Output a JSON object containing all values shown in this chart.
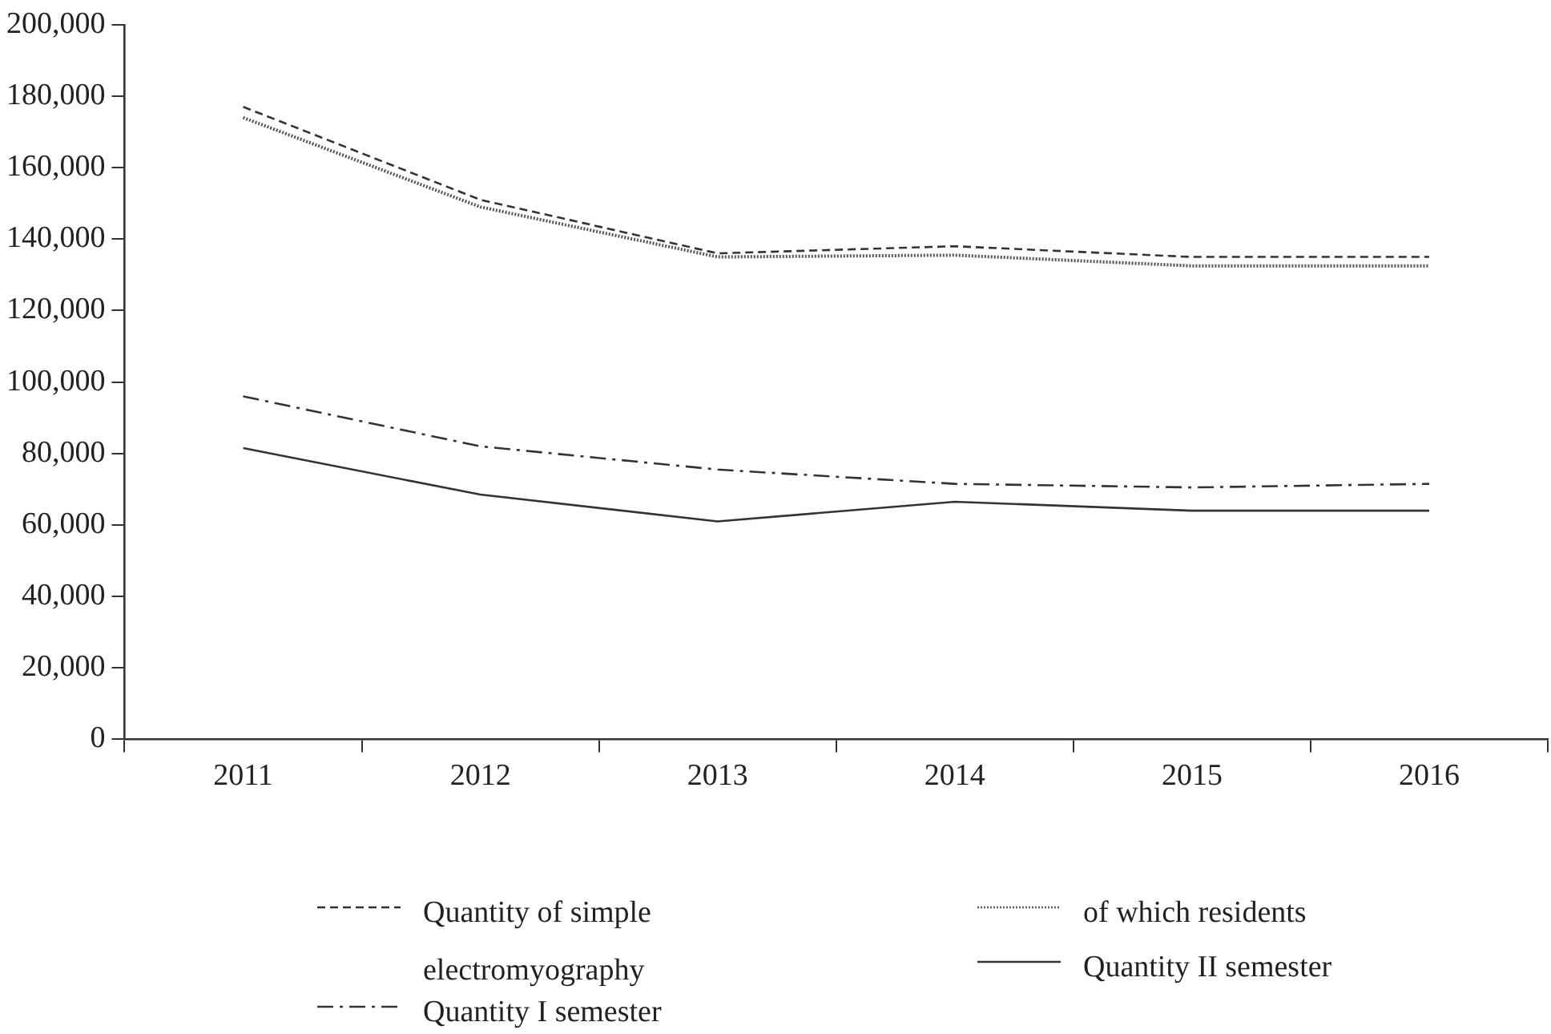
{
  "chart_data": {
    "type": "line",
    "categories": [
      "2011",
      "2012",
      "2013",
      "2014",
      "2015",
      "2016"
    ],
    "series": [
      {
        "name": "Quantity of simple electromyography",
        "color": "#333333",
        "line_style": "dashed",
        "values": [
          177000,
          151000,
          136000,
          138000,
          135000,
          135000
        ]
      },
      {
        "name": "of which residents",
        "color": "#555555",
        "line_style": "dotted",
        "values": [
          174000,
          149000,
          135000,
          135500,
          132500,
          132500
        ]
      },
      {
        "name": "Quantity I semester",
        "color": "#333333",
        "line_style": "dashdot",
        "values": [
          96000,
          82000,
          75500,
          71500,
          70500,
          71500
        ]
      },
      {
        "name": "Quantity II semester",
        "color": "#333333",
        "line_style": "solid",
        "values": [
          81500,
          68500,
          61000,
          66500,
          64000,
          64000
        ]
      }
    ],
    "ylim": [
      0,
      200000
    ],
    "yticks": [
      0,
      {
        "value": 20000,
        "label": "20,000"
      },
      {
        "value": 40000,
        "label": "40,000"
      },
      {
        "value": 60000,
        "label": "60,000"
      },
      {
        "value": 80000,
        "label": "80,000"
      },
      {
        "value": 100000,
        "label": "100,000"
      },
      {
        "value": 120000,
        "label": "120,000"
      },
      {
        "value": 140000,
        "label": "140,000"
      },
      {
        "value": 160000,
        "label": "160,000"
      },
      {
        "value": 180000,
        "label": "180,000"
      },
      {
        "value": 200000,
        "label": "200,000"
      }
    ],
    "grid": false,
    "legend": "bottom",
    "marker": "none"
  }
}
